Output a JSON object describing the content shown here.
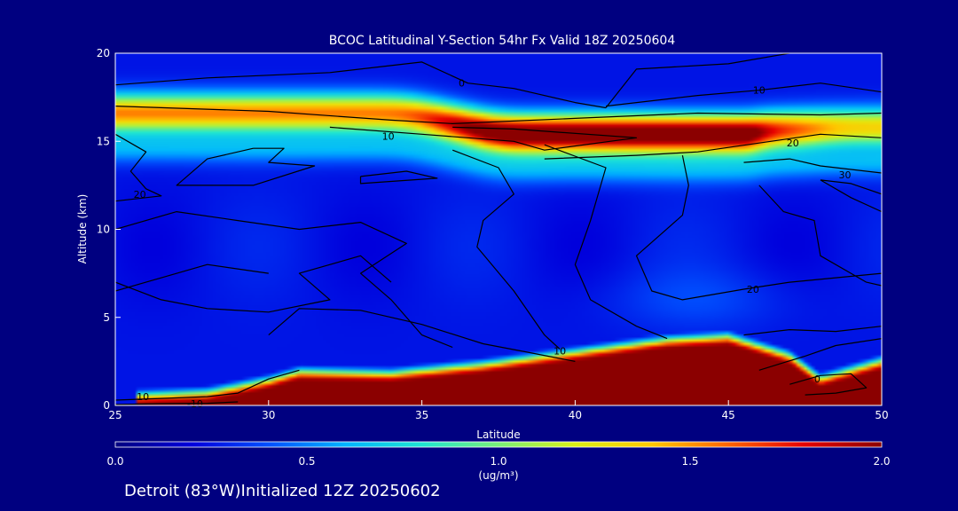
{
  "chart_data": {
    "type": "heatmap",
    "title": "BCOC Latitudinal Y-Section 54hr  Fx Valid 18Z 20250604",
    "xlabel": "Latitude",
    "ylabel": "Altitude (km)",
    "xlim": [
      25,
      50
    ],
    "ylim": [
      0,
      20
    ],
    "x_ticks": [
      25,
      30,
      35,
      40,
      45,
      50
    ],
    "y_ticks": [
      0,
      5,
      10,
      15,
      20
    ],
    "colorbar": {
      "range": [
        0.0,
        2.0
      ],
      "ticks": [
        "0.0",
        "0.5",
        "1.0",
        "1.5",
        "2.0"
      ],
      "units": "(ug/m³)",
      "colors": [
        "#000080",
        "#0000dc",
        "#0050ff",
        "#00b4ff",
        "#1ee6d2",
        "#78f078",
        "#dcf014",
        "#ffc800",
        "#ff6400",
        "#e60000",
        "#8b0000"
      ]
    },
    "concentration_field": {
      "description_units": "ug/m3",
      "background": 0.25,
      "upper_layer": {
        "segments": [
          {
            "lat_range": [
              25,
              36
            ],
            "alt_center": 16.6,
            "peak": 1.3
          },
          {
            "lat_range": [
              36,
              47
            ],
            "alt_center": 15.4,
            "peak": 2.0
          },
          {
            "lat_range": [
              47,
              50
            ],
            "alt_center": 15.8,
            "peak": 1.1
          }
        ]
      },
      "surface_layer": {
        "top_km": [
          [
            25,
            0.0
          ],
          [
            28,
            0.2
          ],
          [
            30,
            0.9
          ],
          [
            31,
            1.4
          ],
          [
            34,
            1.3
          ],
          [
            37,
            1.8
          ],
          [
            40,
            2.5
          ],
          [
            43,
            3.2
          ],
          [
            45,
            3.4
          ],
          [
            47,
            2.3
          ],
          [
            48,
            1.0
          ],
          [
            50,
            2.0
          ]
        ],
        "value": 2.0
      }
    },
    "contours": {
      "labels": [
        {
          "text": "0",
          "lat": 36.3,
          "alt": 18.3
        },
        {
          "text": "10",
          "lat": 46.0,
          "alt": 17.9
        },
        {
          "text": "10",
          "lat": 33.9,
          "alt": 15.3
        },
        {
          "text": "20",
          "lat": 47.1,
          "alt": 14.9
        },
        {
          "text": "30",
          "lat": 48.8,
          "alt": 13.1
        },
        {
          "text": "20",
          "lat": 25.8,
          "alt": 12.0
        },
        {
          "text": "20",
          "lat": 45.8,
          "alt": 6.6
        },
        {
          "text": "10",
          "lat": 39.5,
          "alt": 3.1
        },
        {
          "text": "0",
          "lat": 47.9,
          "alt": 1.5
        },
        {
          "text": "10",
          "lat": 25.9,
          "alt": 0.5
        },
        {
          "text": "-10",
          "lat": 27.6,
          "alt": 0.1
        }
      ]
    }
  },
  "footer": {
    "location_text": "Detroit (83°W)Initialized 12Z 20250602"
  }
}
